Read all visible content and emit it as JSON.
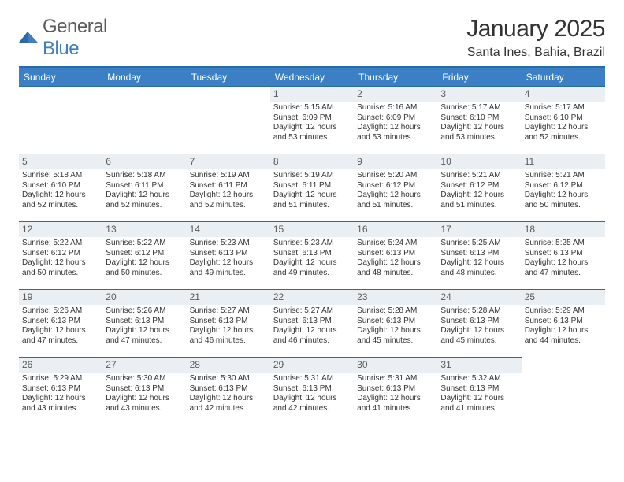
{
  "logo": {
    "text1": "General",
    "text2": "Blue"
  },
  "title": "January 2025",
  "subtitle": "Santa Ines, Bahia, Brazil",
  "colors": {
    "header_bg": "#3b7fc4",
    "header_text": "#ffffff",
    "border": "#2b6aa8",
    "daynum_bg": "#e9eff3",
    "daynum_text": "#5a5a5a",
    "body_text": "#333333",
    "logo_gray": "#5a5a5a",
    "logo_blue": "#3f7fbf"
  },
  "day_headers": [
    "Sunday",
    "Monday",
    "Tuesday",
    "Wednesday",
    "Thursday",
    "Friday",
    "Saturday"
  ],
  "leading_blanks": 3,
  "days": [
    {
      "n": 1,
      "sunrise": "5:15 AM",
      "sunset": "6:09 PM",
      "daylight": "12 hours and 53 minutes."
    },
    {
      "n": 2,
      "sunrise": "5:16 AM",
      "sunset": "6:09 PM",
      "daylight": "12 hours and 53 minutes."
    },
    {
      "n": 3,
      "sunrise": "5:17 AM",
      "sunset": "6:10 PM",
      "daylight": "12 hours and 53 minutes."
    },
    {
      "n": 4,
      "sunrise": "5:17 AM",
      "sunset": "6:10 PM",
      "daylight": "12 hours and 52 minutes."
    },
    {
      "n": 5,
      "sunrise": "5:18 AM",
      "sunset": "6:10 PM",
      "daylight": "12 hours and 52 minutes."
    },
    {
      "n": 6,
      "sunrise": "5:18 AM",
      "sunset": "6:11 PM",
      "daylight": "12 hours and 52 minutes."
    },
    {
      "n": 7,
      "sunrise": "5:19 AM",
      "sunset": "6:11 PM",
      "daylight": "12 hours and 52 minutes."
    },
    {
      "n": 8,
      "sunrise": "5:19 AM",
      "sunset": "6:11 PM",
      "daylight": "12 hours and 51 minutes."
    },
    {
      "n": 9,
      "sunrise": "5:20 AM",
      "sunset": "6:12 PM",
      "daylight": "12 hours and 51 minutes."
    },
    {
      "n": 10,
      "sunrise": "5:21 AM",
      "sunset": "6:12 PM",
      "daylight": "12 hours and 51 minutes."
    },
    {
      "n": 11,
      "sunrise": "5:21 AM",
      "sunset": "6:12 PM",
      "daylight": "12 hours and 50 minutes."
    },
    {
      "n": 12,
      "sunrise": "5:22 AM",
      "sunset": "6:12 PM",
      "daylight": "12 hours and 50 minutes."
    },
    {
      "n": 13,
      "sunrise": "5:22 AM",
      "sunset": "6:12 PM",
      "daylight": "12 hours and 50 minutes."
    },
    {
      "n": 14,
      "sunrise": "5:23 AM",
      "sunset": "6:13 PM",
      "daylight": "12 hours and 49 minutes."
    },
    {
      "n": 15,
      "sunrise": "5:23 AM",
      "sunset": "6:13 PM",
      "daylight": "12 hours and 49 minutes."
    },
    {
      "n": 16,
      "sunrise": "5:24 AM",
      "sunset": "6:13 PM",
      "daylight": "12 hours and 48 minutes."
    },
    {
      "n": 17,
      "sunrise": "5:25 AM",
      "sunset": "6:13 PM",
      "daylight": "12 hours and 48 minutes."
    },
    {
      "n": 18,
      "sunrise": "5:25 AM",
      "sunset": "6:13 PM",
      "daylight": "12 hours and 47 minutes."
    },
    {
      "n": 19,
      "sunrise": "5:26 AM",
      "sunset": "6:13 PM",
      "daylight": "12 hours and 47 minutes."
    },
    {
      "n": 20,
      "sunrise": "5:26 AM",
      "sunset": "6:13 PM",
      "daylight": "12 hours and 47 minutes."
    },
    {
      "n": 21,
      "sunrise": "5:27 AM",
      "sunset": "6:13 PM",
      "daylight": "12 hours and 46 minutes."
    },
    {
      "n": 22,
      "sunrise": "5:27 AM",
      "sunset": "6:13 PM",
      "daylight": "12 hours and 46 minutes."
    },
    {
      "n": 23,
      "sunrise": "5:28 AM",
      "sunset": "6:13 PM",
      "daylight": "12 hours and 45 minutes."
    },
    {
      "n": 24,
      "sunrise": "5:28 AM",
      "sunset": "6:13 PM",
      "daylight": "12 hours and 45 minutes."
    },
    {
      "n": 25,
      "sunrise": "5:29 AM",
      "sunset": "6:13 PM",
      "daylight": "12 hours and 44 minutes."
    },
    {
      "n": 26,
      "sunrise": "5:29 AM",
      "sunset": "6:13 PM",
      "daylight": "12 hours and 43 minutes."
    },
    {
      "n": 27,
      "sunrise": "5:30 AM",
      "sunset": "6:13 PM",
      "daylight": "12 hours and 43 minutes."
    },
    {
      "n": 28,
      "sunrise": "5:30 AM",
      "sunset": "6:13 PM",
      "daylight": "12 hours and 42 minutes."
    },
    {
      "n": 29,
      "sunrise": "5:31 AM",
      "sunset": "6:13 PM",
      "daylight": "12 hours and 42 minutes."
    },
    {
      "n": 30,
      "sunrise": "5:31 AM",
      "sunset": "6:13 PM",
      "daylight": "12 hours and 41 minutes."
    },
    {
      "n": 31,
      "sunrise": "5:32 AM",
      "sunset": "6:13 PM",
      "daylight": "12 hours and 41 minutes."
    }
  ],
  "labels": {
    "sunrise": "Sunrise:",
    "sunset": "Sunset:",
    "daylight": "Daylight:"
  }
}
